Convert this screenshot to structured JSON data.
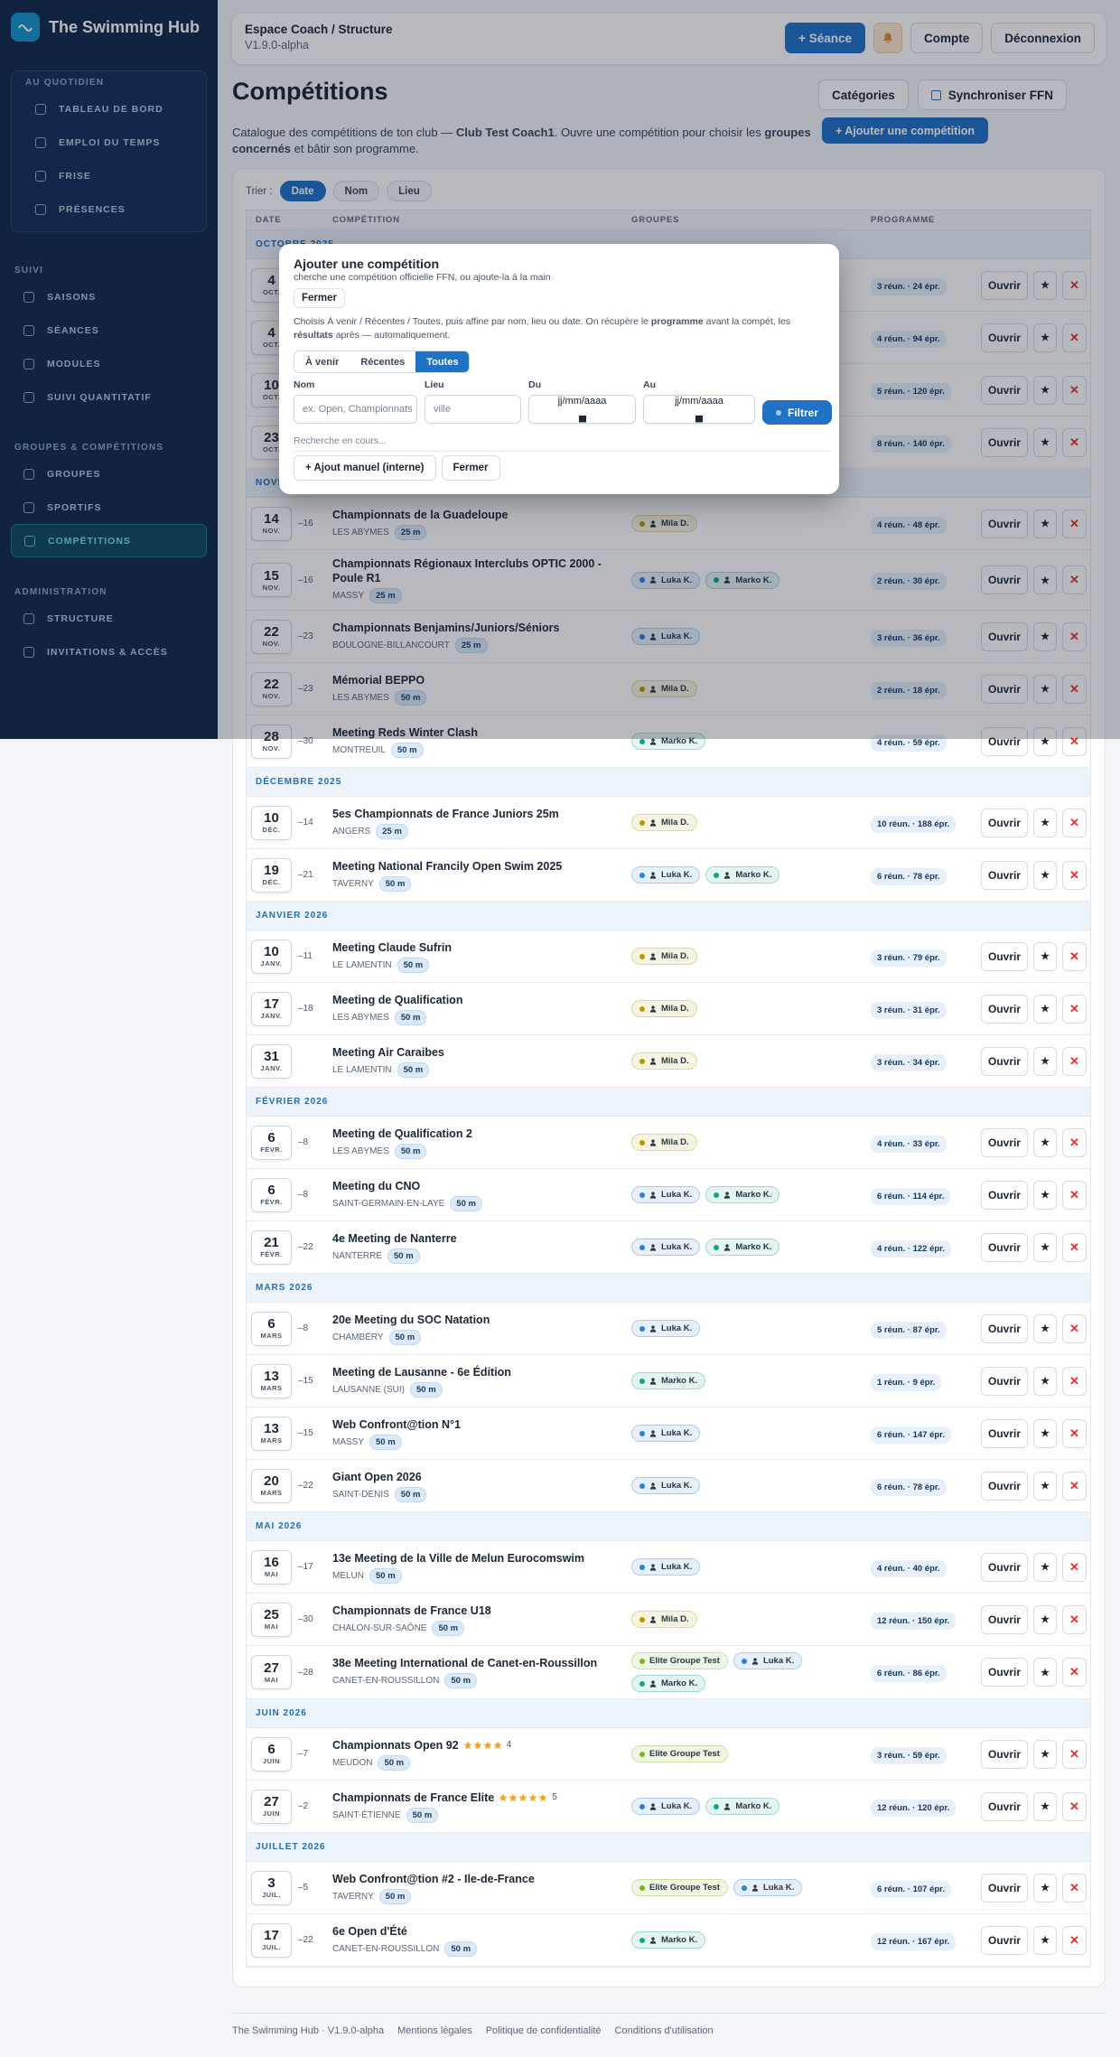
{
  "sidebar": {
    "brand": "The Swimming Hub",
    "sections": [
      {
        "title": "AU QUOTIDIEN",
        "items": [
          "TABLEAU DE BORD",
          "EMPLOI DU TEMPS",
          "FRISE",
          "PRÉSENCES"
        ]
      },
      {
        "title": "SUIVI",
        "items": [
          "SAISONS",
          "SÉANCES",
          "MODULES",
          "SUIVI QUANTITATIF"
        ]
      },
      {
        "title": "GROUPES & COMPÉTITIONS",
        "items": [
          "GROUPES",
          "SPORTIFS",
          "COMPÉTITIONS"
        ],
        "active": 2
      },
      {
        "title": "ADMINISTRATION",
        "items": [
          "STRUCTURE",
          "INVITATIONS & ACCÈS"
        ]
      }
    ]
  },
  "topbar": {
    "title": "Espace Coach / Structure",
    "version": "V1.9.0-alpha",
    "new_session": "+ Séance",
    "account": "Compte",
    "logout": "Déconnexion"
  },
  "header": {
    "title": "Compétitions",
    "categories": "Catégories",
    "sync": "Synchroniser FFN",
    "add": "+ Ajouter une compétition",
    "description": [
      {
        "text": "Catalogue des compétitions de ton club — "
      },
      {
        "text": "Club Test Coach1",
        "bold": true
      },
      {
        "text": ". Ouvre une compétition pour choisir les "
      },
      {
        "text": "groupes concernés",
        "bold": true
      },
      {
        "text": " et bâtir son programme."
      }
    ]
  },
  "sort": {
    "label": "Trier :",
    "options": [
      "Date",
      "Nom",
      "Lieu"
    ],
    "active": 0
  },
  "table": {
    "columns": [
      "DATE",
      "COMPÉTITION",
      "GROUPES",
      "PROGRAMME"
    ],
    "actions": {
      "open": "Ouvrir",
      "favorite": "★",
      "delete": "✕"
    },
    "sections": [
      {
        "label": "OCTOBRE 2025",
        "rows": [
          {
            "day": "4",
            "month": "OCT.",
            "programme": "3 réun. · 24 épr."
          },
          {
            "day": "4",
            "month": "OCT.",
            "programme": "4 réun. · 94 épr."
          },
          {
            "day": "10",
            "month": "OCT.",
            "programme": "5 réun. · 120 épr."
          },
          {
            "day": "23",
            "month": "OCT.",
            "programme": "8 réun. · 140 épr."
          }
        ]
      },
      {
        "label": "NOVEMBRE 2025",
        "rows": [
          {
            "day": "14",
            "month": "NOV.",
            "delay": "–16",
            "title": "Championnats de la Guadeloupe",
            "city": "LES ABYMES",
            "pool": "25 m",
            "groups": [
              {
                "name": "Mila D.",
                "color": "#b59b00",
                "person": true
              }
            ],
            "programme": "4 réun. · 48 épr."
          },
          {
            "day": "15",
            "month": "NOV.",
            "delay": "–16",
            "title": "Championnats Régionaux Interclubs OPTIC 2000 - Poule R1",
            "city": "MASSY",
            "pool": "25 m",
            "groups": [
              {
                "name": "Luka K.",
                "color": "#2f7fd8",
                "person": true
              },
              {
                "name": "Marko K.",
                "color": "#14a38b",
                "person": true
              }
            ],
            "programme": "2 réun. · 30 épr."
          },
          {
            "day": "22",
            "month": "NOV.",
            "delay": "–23",
            "title": "Championnats Benjamins/Juniors/Séniors",
            "city": "BOULOGNE-BILLANCOURT",
            "pool": "25 m",
            "groups": [
              {
                "name": "Luka K.",
                "color": "#2f7fd8",
                "person": true
              }
            ],
            "programme": "3 réun. · 36 épr."
          },
          {
            "day": "22",
            "month": "NOV.",
            "delay": "–23",
            "title": "Mémorial BEPPO",
            "city": "LES ABYMES",
            "pool": "50 m",
            "groups": [
              {
                "name": "Mila D.",
                "color": "#b59b00",
                "person": true
              }
            ],
            "programme": "2 réun. · 18 épr."
          },
          {
            "day": "28",
            "month": "NOV.",
            "delay": "–30",
            "title": "Meeting Reds Winter Clash",
            "city": "MONTREUIL",
            "pool": "50 m",
            "groups": [
              {
                "name": "Marko K.",
                "color": "#14a38b",
                "person": true
              }
            ],
            "programme": "4 réun. · 59 épr."
          }
        ]
      },
      {
        "label": "DÉCEMBRE 2025",
        "rows": [
          {
            "day": "10",
            "month": "DÉC.",
            "delay": "–14",
            "title": "5es Championnats de France Juniors 25m",
            "city": "ANGERS",
            "pool": "25 m",
            "groups": [
              {
                "name": "Mila D.",
                "color": "#b59b00",
                "person": true
              }
            ],
            "programme": "10 réun. · 188 épr."
          },
          {
            "day": "19",
            "month": "DÉC.",
            "delay": "–21",
            "title": "Meeting National Francily Open Swim 2025",
            "city": "TAVERNY",
            "pool": "50 m",
            "groups": [
              {
                "name": "Luka K.",
                "color": "#2f7fd8",
                "person": true
              },
              {
                "name": "Marko K.",
                "color": "#14a38b",
                "person": true
              }
            ],
            "programme": "6 réun. · 78 épr."
          }
        ]
      },
      {
        "label": "JANVIER 2026",
        "rows": [
          {
            "day": "10",
            "month": "JANV.",
            "delay": "–11",
            "title": "Meeting Claude Sufrin",
            "city": "LE LAMENTIN",
            "pool": "50 m",
            "groups": [
              {
                "name": "Mila D.",
                "color": "#b59b00",
                "person": true
              }
            ],
            "programme": "3 réun. · 79 épr."
          },
          {
            "day": "17",
            "month": "JANV.",
            "delay": "–18",
            "title": "Meeting de Qualification",
            "city": "LES ABYMES",
            "pool": "50 m",
            "groups": [
              {
                "name": "Mila D.",
                "color": "#b59b00",
                "person": true
              }
            ],
            "programme": "3 réun. · 31 épr."
          },
          {
            "day": "31",
            "month": "JANV.",
            "title": "Meeting Air Caraibes",
            "city": "LE LAMENTIN",
            "pool": "50 m",
            "groups": [
              {
                "name": "Mila D.",
                "color": "#b59b00",
                "person": true
              }
            ],
            "programme": "3 réun. · 34 épr."
          }
        ]
      },
      {
        "label": "FÉVRIER 2026",
        "rows": [
          {
            "day": "6",
            "month": "FÉVR.",
            "delay": "–8",
            "title": "Meeting de Qualification 2",
            "city": "LES ABYMES",
            "pool": "50 m",
            "groups": [
              {
                "name": "Mila D.",
                "color": "#b59b00",
                "person": true
              }
            ],
            "programme": "4 réun. · 33 épr."
          },
          {
            "day": "6",
            "month": "FÉVR.",
            "delay": "–8",
            "title": "Meeting du CNO",
            "city": "SAINT-GERMAIN-EN-LAYE",
            "pool": "50 m",
            "groups": [
              {
                "name": "Luka K.",
                "color": "#2f7fd8",
                "person": true
              },
              {
                "name": "Marko K.",
                "color": "#14a38b",
                "person": true
              }
            ],
            "programme": "6 réun. · 114 épr."
          },
          {
            "day": "21",
            "month": "FÉVR.",
            "delay": "–22",
            "title": "4e Meeting de Nanterre",
            "city": "NANTERRE",
            "pool": "50 m",
            "groups": [
              {
                "name": "Luka K.",
                "color": "#2f7fd8",
                "person": true
              },
              {
                "name": "Marko K.",
                "color": "#14a38b",
                "person": true
              }
            ],
            "programme": "4 réun. · 122 épr."
          }
        ]
      },
      {
        "label": "MARS 2026",
        "rows": [
          {
            "day": "6",
            "month": "MARS",
            "delay": "–8",
            "title": "20e Meeting du SOC Natation",
            "city": "CHAMBÉRY",
            "pool": "50 m",
            "groups": [
              {
                "name": "Luka K.",
                "color": "#2f7fd8",
                "person": true
              }
            ],
            "programme": "5 réun. · 87 épr."
          },
          {
            "day": "13",
            "month": "MARS",
            "delay": "–15",
            "title": "Meeting de Lausanne - 6e Édition",
            "city": "LAUSANNE (SUI)",
            "pool": "50 m",
            "groups": [
              {
                "name": "Marko K.",
                "color": "#14a38b",
                "person": true
              }
            ],
            "programme": "1 réun. · 9 épr."
          },
          {
            "day": "13",
            "month": "MARS",
            "delay": "–15",
            "title": "Web Confront@tion N°1",
            "city": "MASSY",
            "pool": "50 m",
            "groups": [
              {
                "name": "Luka K.",
                "color": "#2f7fd8",
                "person": true
              }
            ],
            "programme": "6 réun. · 147 épr."
          },
          {
            "day": "20",
            "month": "MARS",
            "delay": "–22",
            "title": "Giant Open 2026",
            "city": "SAINT-DENIS",
            "pool": "50 m",
            "groups": [
              {
                "name": "Luka K.",
                "color": "#2f7fd8",
                "person": true
              }
            ],
            "programme": "6 réun. · 78 épr."
          }
        ]
      },
      {
        "label": "MAI 2026",
        "rows": [
          {
            "day": "16",
            "month": "MAI",
            "delay": "–17",
            "title": "13e Meeting de la Ville de Melun Eurocomswim",
            "city": "MELUN",
            "pool": "50 m",
            "groups": [
              {
                "name": "Luka K.",
                "color": "#2f7fd8",
                "person": true
              }
            ],
            "programme": "4 réun. · 40 épr."
          },
          {
            "day": "25",
            "month": "MAI",
            "delay": "–30",
            "title": "Championnats de France U18",
            "city": "CHALON-SUR-SAÔNE",
            "pool": "50 m",
            "groups": [
              {
                "name": "Mila D.",
                "color": "#b59b00",
                "person": true
              }
            ],
            "programme": "12 réun. · 150 épr."
          },
          {
            "day": "27",
            "month": "MAI",
            "delay": "–28",
            "title": "38e Meeting International de Canet-en-Roussillon",
            "city": "CANET-EN-ROUSSILLON",
            "pool": "50 m",
            "groups": [
              {
                "name": "Elite Groupe Test",
                "color": "#7cb518",
                "person": false
              },
              {
                "name": "Luka K.",
                "color": "#2f7fd8",
                "person": true
              },
              {
                "name": "Marko K.",
                "color": "#14a38b",
                "person": true
              }
            ],
            "programme": "6 réun. · 86 épr."
          }
        ]
      },
      {
        "label": "JUIN 2026",
        "rows": [
          {
            "day": "6",
            "month": "JUIN",
            "delay": "–7",
            "title": "Championnats Open 92",
            "rating": 4,
            "city": "MEUDON",
            "pool": "50 m",
            "groups": [
              {
                "name": "Elite Groupe Test",
                "color": "#7cb518",
                "person": false
              }
            ],
            "programme": "3 réun. · 59 épr."
          },
          {
            "day": "27",
            "month": "JUIN",
            "delay": "–2",
            "title": "Championnats de France Elite",
            "rating": 5,
            "city": "SAINT-ÉTIENNE",
            "pool": "50 m",
            "groups": [
              {
                "name": "Luka K.",
                "color": "#2f7fd8",
                "person": true
              },
              {
                "name": "Marko K.",
                "color": "#14a38b",
                "person": true
              }
            ],
            "programme": "12 réun. · 120 épr."
          }
        ]
      },
      {
        "label": "JUILLET 2026",
        "rows": [
          {
            "day": "3",
            "month": "JUIL.",
            "delay": "–5",
            "title": "Web Confront@tion #2 - Ile-de-France",
            "city": "TAVERNY",
            "pool": "50 m",
            "groups": [
              {
                "name": "Elite Groupe Test",
                "color": "#7cb518",
                "person": false
              },
              {
                "name": "Luka K.",
                "color": "#2f7fd8",
                "person": true
              }
            ],
            "programme": "6 réun. · 107 épr."
          },
          {
            "day": "17",
            "month": "JUIL.",
            "delay": "–22",
            "title": "6e Open d'Été",
            "city": "CANET-EN-ROUSSILLON",
            "pool": "50 m",
            "groups": [
              {
                "name": "Marko K.",
                "color": "#14a38b",
                "person": true
              }
            ],
            "programme": "12 réun. · 167 épr."
          }
        ]
      }
    ]
  },
  "modal": {
    "title": "Ajouter une compétition",
    "subtitle": "cherche une compétition officielle FFN, ou ajoute-la à la main",
    "close": "Fermer",
    "help": [
      {
        "text": "Choisis À venir / Récentes / Toutes, puis affine par nom, lieu ou date. On récupère le "
      },
      {
        "text": "programme",
        "bold": true
      },
      {
        "text": " avant la compét, les "
      },
      {
        "text": "résultats",
        "bold": true
      },
      {
        "text": " après — automatiquement."
      }
    ],
    "tabs": [
      "À venir",
      "Récentes",
      "Toutes"
    ],
    "active_tab": 2,
    "fields": [
      {
        "label": "Nom",
        "placeholder": "ex. Open, Championnats"
      },
      {
        "label": "Lieu",
        "placeholder": "ville"
      },
      {
        "label": "Du",
        "placeholder": "jj/mm/aaaa",
        "date": true
      },
      {
        "label": "Au",
        "placeholder": "jj/mm/aaaa",
        "date": true
      }
    ],
    "filter": "Filtrer",
    "status": "Recherche en cours...",
    "manual": "+ Ajout manuel (interne)",
    "close2": "Fermer"
  },
  "footer": {
    "items": [
      "The Swimming Hub · V1.9.0-alpha",
      "Mentions légales",
      "Politique de confidentialité",
      "Conditions d'utilisation"
    ]
  }
}
